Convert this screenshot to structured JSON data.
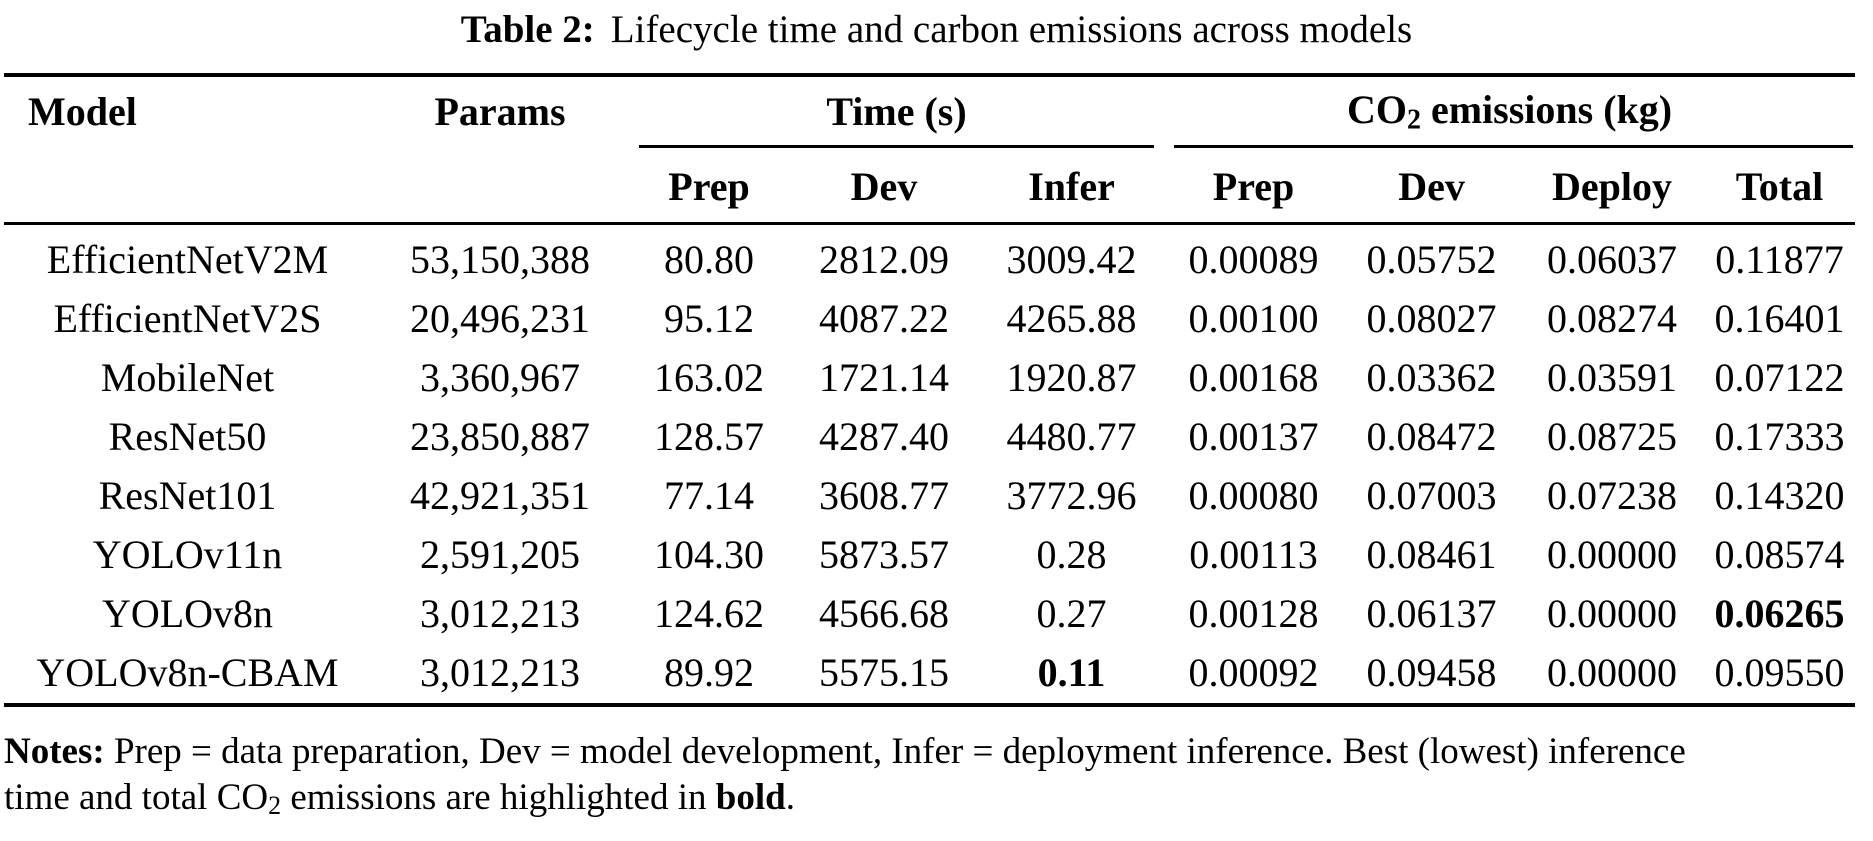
{
  "caption": {
    "label": "Table 2:",
    "text": "Lifecycle time and carbon emissions across models"
  },
  "table": {
    "headers": {
      "model": "Model",
      "params": "Params",
      "time_group": "Time (s)",
      "co2_group": {
        "pre": "CO",
        "sub": "2",
        "post": " emissions (kg)"
      },
      "time_sub": [
        "Prep",
        "Dev",
        "Infer"
      ],
      "co2_sub": [
        "Prep",
        "Dev",
        "Deploy",
        "Total"
      ]
    },
    "rows": [
      {
        "cells": [
          "EfficientNetV2M",
          "53,150,388",
          "80.80",
          "2812.09",
          "3009.42",
          "0.00089",
          "0.05752",
          "0.06037",
          "0.11877"
        ],
        "bold": []
      },
      {
        "cells": [
          "EfficientNetV2S",
          "20,496,231",
          "95.12",
          "4087.22",
          "4265.88",
          "0.00100",
          "0.08027",
          "0.08274",
          "0.16401"
        ],
        "bold": []
      },
      {
        "cells": [
          "MobileNet",
          "3,360,967",
          "163.02",
          "1721.14",
          "1920.87",
          "0.00168",
          "0.03362",
          "0.03591",
          "0.07122"
        ],
        "bold": []
      },
      {
        "cells": [
          "ResNet50",
          "23,850,887",
          "128.57",
          "4287.40",
          "4480.77",
          "0.00137",
          "0.08472",
          "0.08725",
          "0.17333"
        ],
        "bold": []
      },
      {
        "cells": [
          "ResNet101",
          "42,921,351",
          "77.14",
          "3608.77",
          "3772.96",
          "0.00080",
          "0.07003",
          "0.07238",
          "0.14320"
        ],
        "bold": []
      },
      {
        "cells": [
          "YOLOv11n",
          "2,591,205",
          "104.30",
          "5873.57",
          "0.28",
          "0.00113",
          "0.08461",
          "0.00000",
          "0.08574"
        ],
        "bold": []
      },
      {
        "cells": [
          "YOLOv8n",
          "3,012,213",
          "124.62",
          "4566.68",
          "0.27",
          "0.00128",
          "0.06137",
          "0.00000",
          "0.06265"
        ],
        "bold": [
          8
        ]
      },
      {
        "cells": [
          "YOLOv8n-CBAM",
          "3,012,213",
          "89.92",
          "5575.15",
          "0.11",
          "0.00092",
          "0.09458",
          "0.00000",
          "0.09550"
        ],
        "bold": [
          4
        ]
      }
    ]
  },
  "notes": {
    "label": "Notes:",
    "line1": "Prep = data preparation, Dev = model development, Infer = deployment inference. Best (lowest) inference",
    "line2": {
      "pre": "time and total CO",
      "sub": "2",
      "mid": " emissions are highlighted in ",
      "bold": "bold",
      "end": "."
    }
  },
  "colors": {
    "text": "#000000",
    "background": "#ffffff"
  }
}
